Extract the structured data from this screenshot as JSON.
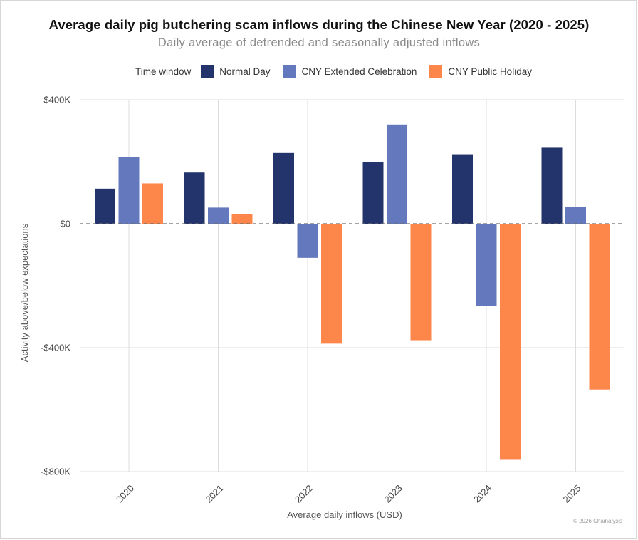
{
  "chart_data": {
    "type": "bar",
    "title": "Average daily pig butchering scam inflows during the Chinese New Year (2020 - 2025)",
    "subtitle": "Daily average of detrended and seasonally adjusted inflows",
    "xlabel": "Average daily inflows (USD)",
    "ylabel": "Activity above/below expectations",
    "categories": [
      "2020",
      "2021",
      "2022",
      "2023",
      "2024",
      "2025"
    ],
    "ylim": [
      -800000,
      400000
    ],
    "yticks": [
      400000,
      0,
      -400000,
      -800000
    ],
    "ytick_labels": [
      "$400K",
      "$0",
      "-$400K",
      "-$800K"
    ],
    "legend_title": "Time window",
    "legend_position": "top",
    "grid": true,
    "zero_line": "dashed",
    "series": [
      {
        "name": "Normal Day",
        "color": "#23336b",
        "values": [
          113000,
          165000,
          228000,
          200000,
          224000,
          245000
        ]
      },
      {
        "name": "CNY Extended Celebration",
        "color": "#6378bd",
        "values": [
          215000,
          52000,
          -110000,
          320000,
          -265000,
          53000
        ]
      },
      {
        "name": "CNY Public Holiday",
        "color": "#fd864b",
        "values": [
          130000,
          32000,
          -387000,
          -376000,
          -762000,
          -535000
        ]
      }
    ]
  },
  "footer": {
    "credit": "© 2026 Chainalysis"
  }
}
